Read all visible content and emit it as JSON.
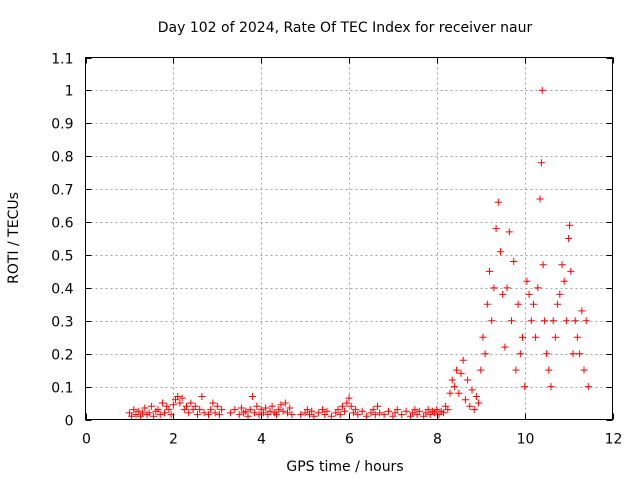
{
  "chart_data": {
    "type": "scatter",
    "title": "Day 102 of 2024, Rate Of TEC Index for receiver naur",
    "xlabel": "GPS time / hours",
    "ylabel": "ROTI / TECUs",
    "xlim": [
      0,
      12
    ],
    "ylim": [
      0,
      1.1
    ],
    "xticks": [
      0,
      2,
      4,
      6,
      8,
      10,
      12
    ],
    "xtick_labels": [
      "0",
      "2",
      "4",
      "6",
      "8",
      "10",
      "12"
    ],
    "yticks": [
      0,
      0.1,
      0.2,
      0.3,
      0.4,
      0.5,
      0.6,
      0.7,
      0.8,
      0.9,
      1.0,
      1.1
    ],
    "ytick_labels": [
      "0",
      "0.1",
      "0.2",
      "0.3",
      "0.4",
      "0.5",
      "0.6",
      "0.7",
      "0.8",
      "0.9",
      "1",
      "1.1"
    ],
    "grid": true,
    "marker": "+",
    "color": "#ff0000",
    "series": [
      {
        "name": "ROTI",
        "points": [
          [
            1.0,
            0.02
          ],
          [
            1.05,
            0.01
          ],
          [
            1.1,
            0.03
          ],
          [
            1.15,
            0.015
          ],
          [
            1.2,
            0.025
          ],
          [
            1.25,
            0.01
          ],
          [
            1.3,
            0.02
          ],
          [
            1.35,
            0.035
          ],
          [
            1.4,
            0.015
          ],
          [
            1.45,
            0.02
          ],
          [
            1.5,
            0.04
          ],
          [
            1.55,
            0.01
          ],
          [
            1.6,
            0.025
          ],
          [
            1.65,
            0.03
          ],
          [
            1.7,
            0.015
          ],
          [
            1.75,
            0.05
          ],
          [
            1.8,
            0.02
          ],
          [
            1.85,
            0.04
          ],
          [
            1.9,
            0.03
          ],
          [
            1.95,
            0.015
          ],
          [
            2.0,
            0.045
          ],
          [
            2.05,
            0.06
          ],
          [
            2.1,
            0.07
          ],
          [
            2.15,
            0.05
          ],
          [
            2.2,
            0.065
          ],
          [
            2.25,
            0.03
          ],
          [
            2.3,
            0.04
          ],
          [
            2.35,
            0.02
          ],
          [
            2.4,
            0.05
          ],
          [
            2.45,
            0.03
          ],
          [
            2.5,
            0.04
          ],
          [
            2.55,
            0.015
          ],
          [
            2.6,
            0.03
          ],
          [
            2.65,
            0.07
          ],
          [
            2.7,
            0.02
          ],
          [
            2.8,
            0.015
          ],
          [
            2.85,
            0.03
          ],
          [
            2.9,
            0.05
          ],
          [
            2.95,
            0.02
          ],
          [
            3.0,
            0.04
          ],
          [
            3.05,
            0.015
          ],
          [
            3.1,
            0.03
          ],
          [
            3.3,
            0.02
          ],
          [
            3.4,
            0.03
          ],
          [
            3.5,
            0.015
          ],
          [
            3.55,
            0.035
          ],
          [
            3.6,
            0.02
          ],
          [
            3.65,
            0.025
          ],
          [
            3.7,
            0.01
          ],
          [
            3.75,
            0.03
          ],
          [
            3.8,
            0.07
          ],
          [
            3.85,
            0.02
          ],
          [
            3.9,
            0.04
          ],
          [
            3.95,
            0.015
          ],
          [
            4.0,
            0.03
          ],
          [
            4.05,
            0.02
          ],
          [
            4.1,
            0.035
          ],
          [
            4.15,
            0.015
          ],
          [
            4.2,
            0.025
          ],
          [
            4.25,
            0.04
          ],
          [
            4.3,
            0.02
          ],
          [
            4.35,
            0.015
          ],
          [
            4.4,
            0.03
          ],
          [
            4.45,
            0.045
          ],
          [
            4.5,
            0.025
          ],
          [
            4.55,
            0.05
          ],
          [
            4.6,
            0.02
          ],
          [
            4.65,
            0.035
          ],
          [
            4.7,
            0.015
          ],
          [
            4.9,
            0.015
          ],
          [
            5.0,
            0.02
          ],
          [
            5.05,
            0.03
          ],
          [
            5.1,
            0.015
          ],
          [
            5.15,
            0.025
          ],
          [
            5.2,
            0.01
          ],
          [
            5.3,
            0.02
          ],
          [
            5.4,
            0.03
          ],
          [
            5.45,
            0.015
          ],
          [
            5.5,
            0.025
          ],
          [
            5.6,
            0.01
          ],
          [
            5.7,
            0.02
          ],
          [
            5.75,
            0.03
          ],
          [
            5.8,
            0.015
          ],
          [
            5.85,
            0.04
          ],
          [
            5.9,
            0.025
          ],
          [
            5.95,
            0.05
          ],
          [
            6.0,
            0.065
          ],
          [
            6.05,
            0.04
          ],
          [
            6.1,
            0.02
          ],
          [
            6.15,
            0.03
          ],
          [
            6.2,
            0.015
          ],
          [
            6.3,
            0.025
          ],
          [
            6.4,
            0.01
          ],
          [
            6.5,
            0.02
          ],
          [
            6.55,
            0.03
          ],
          [
            6.6,
            0.015
          ],
          [
            6.65,
            0.04
          ],
          [
            6.7,
            0.02
          ],
          [
            6.8,
            0.015
          ],
          [
            6.9,
            0.025
          ],
          [
            7.0,
            0.01
          ],
          [
            7.05,
            0.02
          ],
          [
            7.1,
            0.03
          ],
          [
            7.2,
            0.015
          ],
          [
            7.3,
            0.025
          ],
          [
            7.4,
            0.01
          ],
          [
            7.45,
            0.02
          ],
          [
            7.5,
            0.03
          ],
          [
            7.55,
            0.015
          ],
          [
            7.6,
            0.025
          ],
          [
            7.7,
            0.01
          ],
          [
            7.75,
            0.02
          ],
          [
            7.8,
            0.03
          ],
          [
            7.85,
            0.015
          ],
          [
            7.9,
            0.025
          ],
          [
            7.95,
            0.02
          ],
          [
            8.0,
            0.03
          ],
          [
            8.05,
            0.015
          ],
          [
            8.1,
            0.025
          ],
          [
            8.15,
            0.02
          ],
          [
            8.2,
            0.04
          ],
          [
            8.25,
            0.03
          ],
          [
            8.3,
            0.08
          ],
          [
            8.35,
            0.12
          ],
          [
            8.4,
            0.1
          ],
          [
            8.45,
            0.15
          ],
          [
            8.5,
            0.08
          ],
          [
            8.55,
            0.14
          ],
          [
            8.6,
            0.18
          ],
          [
            8.65,
            0.06
          ],
          [
            8.7,
            0.12
          ],
          [
            8.75,
            0.04
          ],
          [
            8.8,
            0.09
          ],
          [
            8.85,
            0.03
          ],
          [
            8.9,
            0.07
          ],
          [
            8.95,
            0.05
          ],
          [
            9.0,
            0.15
          ],
          [
            9.05,
            0.25
          ],
          [
            9.1,
            0.2
          ],
          [
            9.15,
            0.35
          ],
          [
            9.2,
            0.45
          ],
          [
            9.25,
            0.3
          ],
          [
            9.3,
            0.4
          ],
          [
            9.35,
            0.58
          ],
          [
            9.4,
            0.66
          ],
          [
            9.45,
            0.51
          ],
          [
            9.5,
            0.38
          ],
          [
            9.55,
            0.22
          ],
          [
            9.6,
            0.4
          ],
          [
            9.65,
            0.57
          ],
          [
            9.7,
            0.3
          ],
          [
            9.75,
            0.48
          ],
          [
            9.8,
            0.15
          ],
          [
            9.85,
            0.35
          ],
          [
            9.9,
            0.2
          ],
          [
            9.95,
            0.25
          ],
          [
            10.0,
            0.1
          ],
          [
            10.05,
            0.42
          ],
          [
            10.1,
            0.38
          ],
          [
            10.15,
            0.3
          ],
          [
            10.2,
            0.35
          ],
          [
            10.25,
            0.25
          ],
          [
            10.3,
            0.4
          ],
          [
            10.35,
            0.67
          ],
          [
            10.38,
            0.78
          ],
          [
            10.4,
            1.0
          ],
          [
            10.42,
            0.47
          ],
          [
            10.45,
            0.3
          ],
          [
            10.5,
            0.2
          ],
          [
            10.55,
            0.15
          ],
          [
            10.6,
            0.1
          ],
          [
            10.65,
            0.3
          ],
          [
            10.7,
            0.25
          ],
          [
            10.75,
            0.35
          ],
          [
            10.8,
            0.38
          ],
          [
            10.85,
            0.47
          ],
          [
            10.9,
            0.42
          ],
          [
            10.95,
            0.3
          ],
          [
            11.0,
            0.55
          ],
          [
            11.02,
            0.59
          ],
          [
            11.05,
            0.45
          ],
          [
            11.1,
            0.2
          ],
          [
            11.15,
            0.3
          ],
          [
            11.2,
            0.25
          ],
          [
            11.25,
            0.2
          ],
          [
            11.3,
            0.33
          ],
          [
            11.35,
            0.15
          ],
          [
            11.4,
            0.3
          ],
          [
            11.45,
            0.1
          ]
        ]
      }
    ]
  }
}
